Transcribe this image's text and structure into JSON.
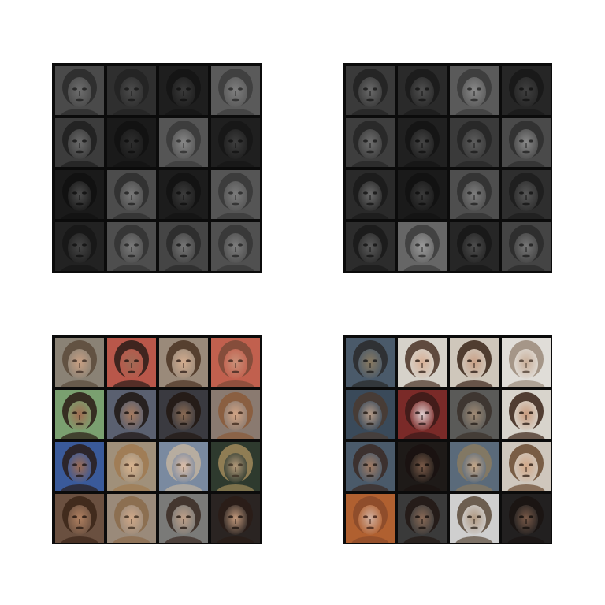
{
  "figure": {
    "panels": [
      {
        "color_mode": "grayscale",
        "grid": "4x4",
        "tiles": [
          {
            "bg": "#4a4a4a",
            "skin": "#6e6e6e",
            "hair": "#2a2a2a",
            "feature": "#1c1c1c"
          },
          {
            "bg": "#2f2f2f",
            "skin": "#4c4c4c",
            "hair": "#222222",
            "feature": "#151515"
          },
          {
            "bg": "#1e1e1e",
            "skin": "#3a3a3a",
            "hair": "#141414",
            "feature": "#0f0f0f"
          },
          {
            "bg": "#5a5a5a",
            "skin": "#7f7f7f",
            "hair": "#3c3c3c",
            "feature": "#262626"
          },
          {
            "bg": "#3c3c3c",
            "skin": "#6a6a6a",
            "hair": "#1e1e1e",
            "feature": "#141414"
          },
          {
            "bg": "#1a1a1a",
            "skin": "#2e2e2e",
            "hair": "#121212",
            "feature": "#0c0c0c"
          },
          {
            "bg": "#555555",
            "skin": "#888888",
            "hair": "#3a3a3a",
            "feature": "#2a2a2a"
          },
          {
            "bg": "#1f1f1f",
            "skin": "#3e3e3e",
            "hair": "#161616",
            "feature": "#101010"
          },
          {
            "bg": "#1a1a1a",
            "skin": "#4a4a4a",
            "hair": "#111111",
            "feature": "#0c0c0c"
          },
          {
            "bg": "#4c4c4c",
            "skin": "#7a7a7a",
            "hair": "#2e2e2e",
            "feature": "#1e1e1e"
          },
          {
            "bg": "#1c1c1c",
            "skin": "#3c3c3c",
            "hair": "#121212",
            "feature": "#0d0d0d"
          },
          {
            "bg": "#555555",
            "skin": "#7c7c7c",
            "hair": "#383838",
            "feature": "#262626"
          },
          {
            "bg": "#222222",
            "skin": "#444444",
            "hair": "#161616",
            "feature": "#0f0f0f"
          },
          {
            "bg": "#4e4e4e",
            "skin": "#7a7a7a",
            "hair": "#333333",
            "feature": "#202020"
          },
          {
            "bg": "#454545",
            "skin": "#777777",
            "hair": "#2a2a2a",
            "feature": "#141414"
          },
          {
            "bg": "#505050",
            "skin": "#7e7e7e",
            "hair": "#353535",
            "feature": "#222222"
          }
        ]
      },
      {
        "color_mode": "grayscale",
        "grid": "4x4",
        "tiles": [
          {
            "bg": "#3a3a3a",
            "skin": "#6a6a6a",
            "hair": "#222222",
            "feature": "#161616"
          },
          {
            "bg": "#2a2a2a",
            "skin": "#505050",
            "hair": "#1a1a1a",
            "feature": "#111111"
          },
          {
            "bg": "#5a5a5a",
            "skin": "#8a8a8a",
            "hair": "#3a3a3a",
            "feature": "#222222"
          },
          {
            "bg": "#262626",
            "skin": "#404040",
            "hair": "#181818",
            "feature": "#101010"
          },
          {
            "bg": "#3e3e3e",
            "skin": "#6e6e6e",
            "hair": "#262626",
            "feature": "#181818"
          },
          {
            "bg": "#202020",
            "skin": "#454545",
            "hair": "#141414",
            "feature": "#0d0d0d"
          },
          {
            "bg": "#3a3a3a",
            "skin": "#5e5e5e",
            "hair": "#262626",
            "feature": "#181818"
          },
          {
            "bg": "#4a4a4a",
            "skin": "#8a8a8a",
            "hair": "#2e2e2e",
            "feature": "#1c1c1c"
          },
          {
            "bg": "#2a2a2a",
            "skin": "#6a6a6a",
            "hair": "#1a1a1a",
            "feature": "#111111"
          },
          {
            "bg": "#1a1a1a",
            "skin": "#3a3a3a",
            "hair": "#121212",
            "feature": "#0c0c0c"
          },
          {
            "bg": "#4e4e4e",
            "skin": "#7e7e7e",
            "hair": "#303030",
            "feature": "#1e1e1e"
          },
          {
            "bg": "#2e2e2e",
            "skin": "#575757",
            "hair": "#1c1c1c",
            "feature": "#121212"
          },
          {
            "bg": "#2c2c2c",
            "skin": "#5a5a5a",
            "hair": "#1a1a1a",
            "feature": "#111111"
          },
          {
            "bg": "#666666",
            "skin": "#9a9a9a",
            "hair": "#3c3c3c",
            "feature": "#262626"
          },
          {
            "bg": "#262626",
            "skin": "#4e4e4e",
            "hair": "#171717",
            "feature": "#0f0f0f"
          },
          {
            "bg": "#444444",
            "skin": "#777777",
            "hair": "#2a2a2a",
            "feature": "#1a1a1a"
          }
        ]
      },
      {
        "color_mode": "color",
        "grid": "4x4",
        "tiles": [
          {
            "bg": "#8a8275",
            "skin": "#c9a083",
            "hair": "#5a4a3a",
            "feature": "#3a2a22"
          },
          {
            "bg": "#b9574a",
            "skin": "#a06a55",
            "hair": "#2a1c18",
            "feature": "#1e1410"
          },
          {
            "bg": "#9a8a7a",
            "skin": "#d4ad8f",
            "hair": "#4a3222",
            "feature": "#2a1a14"
          },
          {
            "bg": "#c1604e",
            "skin": "#c89078",
            "hair": "#7a4a38",
            "feature": "#3a241c"
          },
          {
            "bg": "#7aa070",
            "skin": "#a06b50",
            "hair": "#2a1a14",
            "feature": "#1e120e"
          },
          {
            "bg": "#5a6070",
            "skin": "#a67a5e",
            "hair": "#1e1612",
            "feature": "#140e0b"
          },
          {
            "bg": "#3a3a40",
            "skin": "#8a6a52",
            "hair": "#221812",
            "feature": "#150f0b"
          },
          {
            "bg": "#8a7a70",
            "skin": "#d2a484",
            "hair": "#8a5a38",
            "feature": "#3a2418"
          },
          {
            "bg": "#3a5a9a",
            "skin": "#9a6a52",
            "hair": "#2a1c18",
            "feature": "#1a1210"
          },
          {
            "bg": "#a0907a",
            "skin": "#d9b48f",
            "hair": "#a07a50",
            "feature": "#4a3222"
          },
          {
            "bg": "#7a8aa0",
            "skin": "#e0c0a8",
            "hair": "#c2b3a0",
            "feature": "#5a4a3a"
          },
          {
            "bg": "#2e3a2e",
            "skin": "#b49a7a",
            "hair": "#a08a5a",
            "feature": "#3a2e22"
          },
          {
            "bg": "#6a5040",
            "skin": "#b08060",
            "hair": "#3a2418",
            "feature": "#20140e"
          },
          {
            "bg": "#9a8a7a",
            "skin": "#d0a888",
            "hair": "#8a6a4a",
            "feature": "#3a2a1e"
          },
          {
            "bg": "#7a7a78",
            "skin": "#c0a088",
            "hair": "#3a2a22",
            "feature": "#22160f"
          },
          {
            "bg": "#2a2422",
            "skin": "#c49a7c",
            "hair": "#2a1c16",
            "feature": "#1a120e"
          }
        ]
      },
      {
        "color_mode": "color",
        "grid": "4x4",
        "tiles": [
          {
            "bg": "#4a5a6a",
            "skin": "#8a7a60",
            "hair": "#2a2a2a",
            "feature": "#181818"
          },
          {
            "bg": "#d6d2ca",
            "skin": "#d8b096",
            "hair": "#4a3226",
            "feature": "#2a1a12"
          },
          {
            "bg": "#cfc7bb",
            "skin": "#caa086",
            "hair": "#3a2418",
            "feature": "#24160f"
          },
          {
            "bg": "#e0ddd8",
            "skin": "#c9ae98",
            "hair": "#9a8a7a",
            "feature": "#4a3a2e"
          },
          {
            "bg": "#3a4a5a",
            "skin": "#b49a86",
            "hair": "#4a3a30",
            "feature": "#221812"
          },
          {
            "bg": "#7a2a28",
            "skin": "#e0d0d0",
            "hair": "#3a1a18",
            "feature": "#201010"
          },
          {
            "bg": "#5a5a58",
            "skin": "#a08a74",
            "hair": "#3a302a",
            "feature": "#201a16"
          },
          {
            "bg": "#d8d4cc",
            "skin": "#c89a7c",
            "hair": "#3a2216",
            "feature": "#22140d"
          },
          {
            "bg": "#4a5a6a",
            "skin": "#a07a62",
            "hair": "#3a2a24",
            "feature": "#1e1612"
          },
          {
            "bg": "#1e1a18",
            "skin": "#7a5a48",
            "hair": "#1a1210",
            "feature": "#100b09"
          },
          {
            "bg": "#5a6a7a",
            "skin": "#c6a888",
            "hair": "#8a7a60",
            "feature": "#3a2e24"
          },
          {
            "bg": "#cfc7bd",
            "skin": "#d2a888",
            "hair": "#6a4a30",
            "feature": "#2e1e14"
          },
          {
            "bg": "#b06030",
            "skin": "#d0b0a0",
            "hair": "#8a4a2a",
            "feature": "#3a1c12"
          },
          {
            "bg": "#3a3a3a",
            "skin": "#8a6a56",
            "hair": "#221814",
            "feature": "#140e0b"
          },
          {
            "bg": "#cfcfcf",
            "skin": "#b09880",
            "hair": "#5a4a3a",
            "feature": "#2a2018"
          },
          {
            "bg": "#222020",
            "skin": "#7a5a48",
            "hair": "#1a1412",
            "feature": "#100c0a"
          }
        ]
      }
    ]
  }
}
